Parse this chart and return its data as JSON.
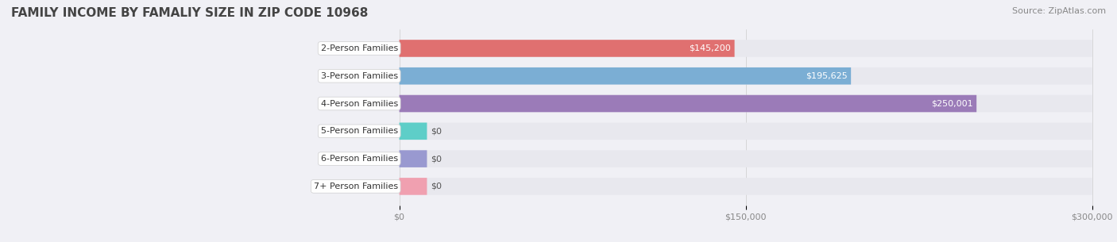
{
  "title": "FAMILY INCOME BY FAMALIY SIZE IN ZIP CODE 10968",
  "source": "Source: ZipAtlas.com",
  "categories": [
    "2-Person Families",
    "3-Person Families",
    "4-Person Families",
    "5-Person Families",
    "6-Person Families",
    "7+ Person Families"
  ],
  "values": [
    145200,
    195625,
    250001,
    0,
    0,
    0
  ],
  "bar_colors": [
    "#E07070",
    "#7BAED4",
    "#9B7BB8",
    "#5ECEC8",
    "#9999D0",
    "#F0A0B0"
  ],
  "label_colors": [
    "#888888",
    "#ffffff",
    "#ffffff",
    "#555555",
    "#555555",
    "#555555"
  ],
  "value_labels": [
    "$145,200",
    "$195,625",
    "$250,001",
    "$0",
    "$0",
    "$0"
  ],
  "xlim": [
    0,
    300000
  ],
  "xticks": [
    0,
    150000,
    300000
  ],
  "xtick_labels": [
    "$0",
    "$150,000",
    "$300,000"
  ],
  "background_color": "#f0f0f5",
  "bar_bg_color": "#e8e8ee",
  "title_fontsize": 11,
  "source_fontsize": 8,
  "label_fontsize": 8,
  "value_fontsize": 8,
  "figsize": [
    14.06,
    3.05
  ],
  "dpi": 100
}
